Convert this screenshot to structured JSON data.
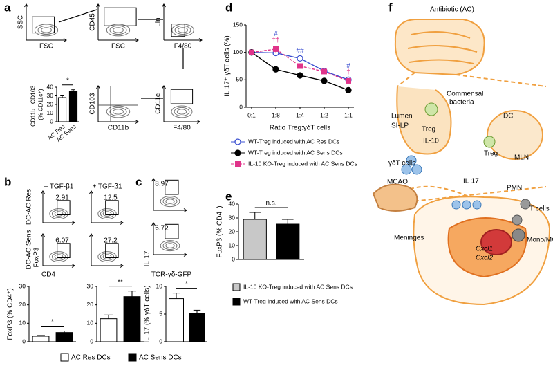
{
  "panel_labels": [
    "a",
    "b",
    "c",
    "d",
    "e",
    "f"
  ],
  "flow": {
    "a_axes": [
      [
        "SSC",
        "FSC"
      ],
      [
        "CD45",
        "FSC"
      ],
      [
        "Lin",
        "F4/80"
      ],
      [
        "CD103",
        "CD11b"
      ],
      [
        "CD11c",
        "F4/80"
      ]
    ],
    "b_columns": [
      "– TGF-β1",
      "+ TGF-β1"
    ],
    "b_rows": [
      "DC-AC Res",
      "DC-AC Sens"
    ],
    "b_axes": [
      "FoxP3",
      "CD4"
    ],
    "b_gates": [
      2.91,
      12.5,
      6.07,
      27.2
    ],
    "c_axes": [
      "IL-17",
      "TCR-γδ-GFP"
    ],
    "c_gates": [
      8.97,
      6.72
    ]
  },
  "legend": [
    {
      "name": "AC Res DCs",
      "color": "#ffffff"
    },
    {
      "name": "AC Sens DCs",
      "color": "#000000"
    }
  ],
  "chart_data": [
    {
      "type": "bar",
      "ylabel": [
        "CD11b⁺ CD103⁺",
        "(% CD11c⁺)"
      ],
      "categories": [
        "AC Res",
        "AC Sens"
      ],
      "values": [
        28,
        35
      ],
      "errors": [
        2,
        2
      ],
      "colors": [
        "#ffffff",
        "#000000"
      ],
      "annotation": "*",
      "ylim": [
        0,
        40
      ],
      "yticks": [
        0,
        10,
        20,
        30,
        40
      ]
    },
    {
      "type": "bar",
      "ylabel": "FoxP3 (% CD4⁺)",
      "values": [
        3,
        5
      ],
      "errors": [
        0.4,
        0.8
      ],
      "colors": [
        "#ffffff",
        "#000000"
      ],
      "annotation": "*",
      "ylim": [
        0,
        30
      ],
      "yticks": [
        0,
        10,
        20,
        30
      ]
    },
    {
      "type": "bar",
      "values": [
        12.5,
        24.5
      ],
      "errors": [
        2,
        3
      ],
      "colors": [
        "#ffffff",
        "#000000"
      ],
      "annotation": "**",
      "ylim": [
        0,
        30
      ],
      "yticks": [
        0,
        10,
        20,
        30
      ]
    },
    {
      "type": "bar",
      "ylabel": "IL-17 (% γδT cells)",
      "values": [
        7.8,
        5.1
      ],
      "errors": [
        1,
        0.6
      ],
      "colors": [
        "#ffffff",
        "#000000"
      ],
      "annotation": "*",
      "ylim": [
        0,
        10
      ],
      "yticks": [
        0,
        5,
        10
      ]
    },
    {
      "type": "line",
      "ylabel": "IL-17⁺ γδT cells (%)",
      "xlabel": "Ratio Treg:γδT cells",
      "categories": [
        "0:1",
        "1:8",
        "1:4",
        "1:2",
        "1:1"
      ],
      "ylim": [
        0,
        150
      ],
      "yticks": [
        0,
        50,
        100,
        150
      ],
      "series": [
        {
          "name": "WT-Treg induced with AC Res DCs",
          "color": "#3a4fd0",
          "marker": "circle-open",
          "linestyle": "solid",
          "values": [
            100,
            99,
            89,
            66,
            50
          ],
          "errors": [
            0,
            4,
            4,
            4,
            4
          ],
          "annotations": [
            null,
            "#",
            "##",
            null,
            "#"
          ]
        },
        {
          "name": "WT-Treg induced with AC Sens DCs",
          "color": "#000000",
          "marker": "circle",
          "linestyle": "solid",
          "values": [
            100,
            69,
            58,
            48,
            31
          ],
          "errors": [
            0,
            4,
            5,
            3,
            4
          ],
          "annotations": [
            null,
            null,
            null,
            null,
            null
          ]
        },
        {
          "name": "IL-10 KO-Treg induced with AC Sens DCs",
          "color": "#e0338a",
          "marker": "square",
          "linestyle": "dashed",
          "values": [
            100,
            106,
            75,
            65,
            48
          ],
          "errors": [
            0,
            6,
            4,
            5,
            4
          ],
          "annotations": [
            null,
            "††",
            null,
            null,
            "†"
          ]
        }
      ]
    },
    {
      "type": "bar",
      "ylabel": "FoxP3 (% CD4⁺)",
      "values": [
        29,
        25.5
      ],
      "errors": [
        5,
        3.5
      ],
      "colors": [
        "#c8c8c8",
        "#000000"
      ],
      "annotation": "n.s.",
      "ylim": [
        0,
        40
      ],
      "yticks": [
        0,
        10,
        20,
        30,
        40
      ],
      "legend": [
        {
          "name": "IL-10 KO-Treg induced with AC Sens DCs",
          "color": "#c8c8c8"
        },
        {
          "name": "WT-Treg induced with AC Sens DCs",
          "color": "#000000"
        }
      ]
    }
  ],
  "diagram": {
    "labels": [
      "Antibiotic (AC)",
      "Commensal",
      "bacteria",
      "Lumen",
      "SI-LP",
      "Treg",
      "IL-10",
      "DC",
      "Treg",
      "MLN",
      "γδT cells",
      "IL-17",
      "MCAO",
      "PMN",
      "T cells",
      "Meninges",
      "Cxcl1",
      "Cxcl2",
      "Mono/MΦ"
    ]
  }
}
